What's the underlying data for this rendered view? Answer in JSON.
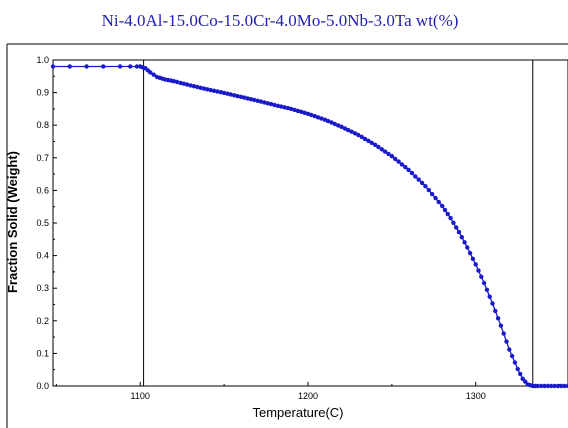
{
  "chart_data": {
    "type": "line",
    "title": "Ni-4.0Al-15.0Co-15.0Cr-4.0Mo-5.0Nb-3.0Ta wt(%)",
    "xlabel": "Temperature(C)",
    "ylabel": "Fraction Solid (Weight)",
    "xlim": [
      1048,
      1355
    ],
    "ylim": [
      0,
      1.0
    ],
    "x_ticks": [
      1100,
      1200,
      1300
    ],
    "y_ticks": [
      0.0,
      0.1,
      0.2,
      0.3,
      0.4,
      0.5,
      0.6,
      0.7,
      0.8,
      0.9,
      1.0
    ],
    "y_tick_labels": [
      "0.0",
      "0.1",
      "0.2",
      "0.3",
      "0.4",
      "0.5",
      "0.6",
      "0.7",
      "0.8",
      "0.9",
      "1.0"
    ],
    "x_tick_labels": [
      "1100",
      "1200",
      "1300"
    ],
    "vertical_lines": [
      1102,
      1334
    ],
    "grid": false,
    "series": [
      {
        "color": "#1a1acc",
        "marker": "circle",
        "x": [
          1048,
          1058,
          1068,
          1078,
          1088,
          1094,
          1098,
          1100,
          1103,
          1106,
          1110,
          1115,
          1120,
          1130,
          1140,
          1150,
          1160,
          1170,
          1180,
          1190,
          1200,
          1210,
          1220,
          1230,
          1240,
          1250,
          1260,
          1270,
          1280,
          1285,
          1290,
          1295,
          1300,
          1305,
          1310,
          1315,
          1320,
          1325,
          1328,
          1331,
          1334,
          1337,
          1345,
          1355
        ],
        "y": [
          0.98,
          0.98,
          0.98,
          0.98,
          0.98,
          0.98,
          0.98,
          0.98,
          0.975,
          0.962,
          0.948,
          0.94,
          0.935,
          0.922,
          0.91,
          0.899,
          0.887,
          0.875,
          0.862,
          0.85,
          0.835,
          0.817,
          0.795,
          0.77,
          0.74,
          0.705,
          0.663,
          0.613,
          0.552,
          0.515,
          0.472,
          0.425,
          0.373,
          0.316,
          0.253,
          0.185,
          0.112,
          0.052,
          0.022,
          0.005,
          0.0,
          0.0,
          0.0,
          0.0
        ]
      }
    ]
  }
}
